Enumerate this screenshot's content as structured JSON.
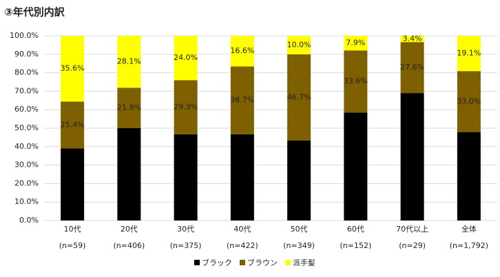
{
  "chart_data": {
    "type": "stacked_bar",
    "title": "③年代別内訳",
    "categories": [
      "10代",
      "20代",
      "30代",
      "40代",
      "50代",
      "60代",
      "70代以上",
      "全体"
    ],
    "sample_sizes": [
      "(n=59)",
      "(n=406)",
      "(n=375)",
      "(n=422)",
      "(n=349)",
      "(n=152)",
      "(n=29)",
      "(n=1,792)"
    ],
    "series": [
      {
        "name": "ブラック",
        "color": "#000000",
        "values": [
          39.0,
          50.0,
          46.7,
          46.7,
          43.3,
          58.5,
          69.0,
          47.9
        ]
      },
      {
        "name": "ブラウン",
        "color": "#7f6000",
        "values": [
          25.4,
          21.9,
          29.3,
          36.7,
          46.7,
          33.6,
          27.6,
          33.0
        ],
        "value_labels": [
          "25.4%",
          "21.9%",
          "29.3%",
          "36.7%",
          "46.7%",
          "33.6%",
          "27.6%",
          "33.0%"
        ]
      },
      {
        "name": "派手髪",
        "color": "#ffff00",
        "values": [
          35.6,
          28.1,
          24.0,
          16.6,
          10.0,
          7.9,
          3.4,
          19.1
        ],
        "value_labels": [
          "35.6%",
          "28.1%",
          "24.0%",
          "16.6%",
          "10.0%",
          "7.9%",
          "3.4%",
          "19.1%"
        ]
      }
    ],
    "ylim": [
      0,
      100
    ],
    "yticks": [
      {
        "value": 0,
        "label": "0.0%"
      },
      {
        "value": 10,
        "label": "10.0%"
      },
      {
        "value": 20,
        "label": "20.0%"
      },
      {
        "value": 30,
        "label": "30.0%"
      },
      {
        "value": 40,
        "label": "40.0%"
      },
      {
        "value": 50,
        "label": "50.0%"
      },
      {
        "value": 60,
        "label": "60.0%"
      },
      {
        "value": 70,
        "label": "70.0%"
      },
      {
        "value": 80,
        "label": "80.0%"
      },
      {
        "value": 90,
        "label": "90.0%"
      },
      {
        "value": 100,
        "label": "100.0%"
      }
    ],
    "grid": true,
    "legend": "bottom"
  }
}
